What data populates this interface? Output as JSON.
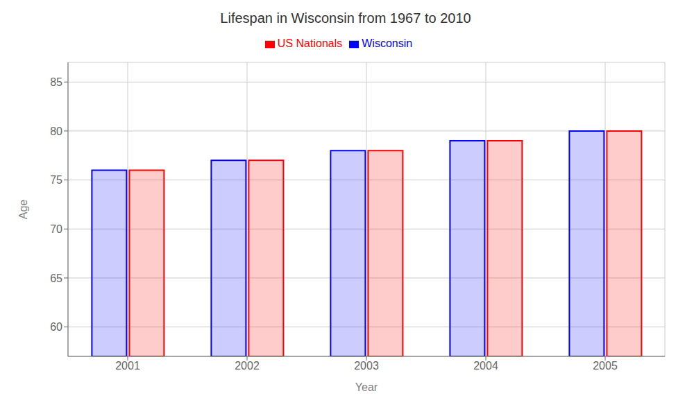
{
  "chart_data": {
    "type": "bar",
    "title": "Lifespan in Wisconsin from 1967 to 2010",
    "x_label": "Year",
    "y_label": "Age",
    "categories": [
      "2001",
      "2002",
      "2003",
      "2004",
      "2005"
    ],
    "series": [
      {
        "name": "Wisconsin",
        "color": "#0000ff",
        "values": [
          76.0,
          77.0,
          78.0,
          79.0,
          80.0
        ]
      },
      {
        "name": "US Nationals",
        "color": "#ff0000",
        "values": [
          76.0,
          77.0,
          78.0,
          79.0,
          80.0
        ]
      }
    ],
    "ylim": [
      57,
      87
    ],
    "yticks": [
      60,
      65,
      70,
      75,
      80,
      85
    ],
    "grid": true,
    "legend": "top"
  }
}
